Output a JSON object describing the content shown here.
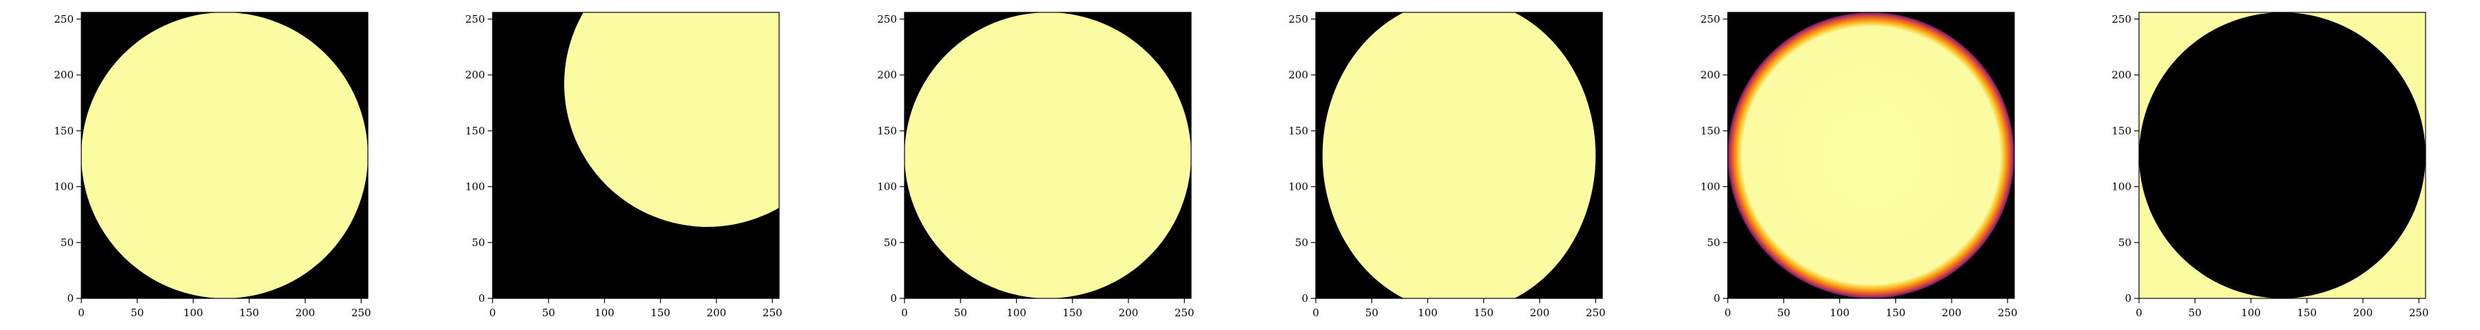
{
  "figure": {
    "background": "#ffffff",
    "axis_color": "#000000"
  },
  "chart_data": [
    {
      "type": "heatmap",
      "title": "",
      "xlabel": "",
      "ylabel": "",
      "xlim": [
        0,
        256
      ],
      "ylim": [
        0,
        256
      ],
      "xticks": [
        0,
        50,
        100,
        150,
        200,
        250
      ],
      "yticks": [
        0,
        50,
        100,
        150,
        200,
        250
      ],
      "background_color": "#000000",
      "fill_color": "#fbfba2",
      "shape": {
        "kind": "circle",
        "center": [
          128,
          128
        ],
        "radius": 128
      }
    },
    {
      "type": "heatmap",
      "title": "",
      "xlabel": "",
      "ylabel": "",
      "xlim": [
        0,
        256
      ],
      "ylim": [
        0,
        256
      ],
      "xticks": [
        0,
        50,
        100,
        150,
        200,
        250
      ],
      "yticks": [
        0,
        50,
        100,
        150,
        200,
        250
      ],
      "background_color": "#000000",
      "fill_color": "#fbfba2",
      "shape": {
        "kind": "circle",
        "center": [
          192,
          192
        ],
        "radius": 128
      }
    },
    {
      "type": "heatmap",
      "title": "",
      "xlabel": "",
      "ylabel": "",
      "xlim": [
        0,
        256
      ],
      "ylim": [
        0,
        256
      ],
      "xticks": [
        0,
        50,
        100,
        150,
        200,
        250
      ],
      "yticks": [
        0,
        50,
        100,
        150,
        200,
        250
      ],
      "background_color": "#000000",
      "fill_color": "#fbfba2",
      "shape": {
        "kind": "ellipse",
        "center": [
          128,
          128
        ],
        "rx": 128,
        "ry": 128,
        "rotation": -25
      }
    },
    {
      "type": "heatmap",
      "title": "",
      "xlabel": "",
      "ylabel": "",
      "xlim": [
        0,
        256
      ],
      "ylim": [
        0,
        256
      ],
      "xticks": [
        0,
        50,
        100,
        150,
        200,
        250
      ],
      "yticks": [
        0,
        50,
        100,
        150,
        200,
        250
      ],
      "background_color": "#000000",
      "fill_color": "#fbfba2",
      "shape": {
        "kind": "ellipse",
        "center": [
          128,
          128
        ],
        "rx": 122,
        "ry": 140,
        "rotation": 0
      }
    },
    {
      "type": "heatmap",
      "title": "",
      "xlabel": "",
      "ylabel": "",
      "xlim": [
        0,
        256
      ],
      "ylim": [
        0,
        256
      ],
      "xticks": [
        0,
        50,
        100,
        150,
        200,
        250
      ],
      "yticks": [
        0,
        50,
        100,
        150,
        200,
        250
      ],
      "background_color": "#000000",
      "fill_color": "#fbfba2",
      "colormap": "inferno",
      "shape": {
        "kind": "circle",
        "center": [
          128,
          128
        ],
        "radius": 128,
        "soft_edge": true
      }
    },
    {
      "type": "heatmap",
      "title": "",
      "xlabel": "",
      "ylabel": "",
      "xlim": [
        0,
        256
      ],
      "ylim": [
        0,
        256
      ],
      "xticks": [
        0,
        50,
        100,
        150,
        200,
        250
      ],
      "yticks": [
        0,
        50,
        100,
        150,
        200,
        250
      ],
      "background_color": "#fbfba2",
      "fill_color": "#000000",
      "shape": {
        "kind": "circle",
        "center": [
          128,
          128
        ],
        "radius": 128
      }
    }
  ]
}
